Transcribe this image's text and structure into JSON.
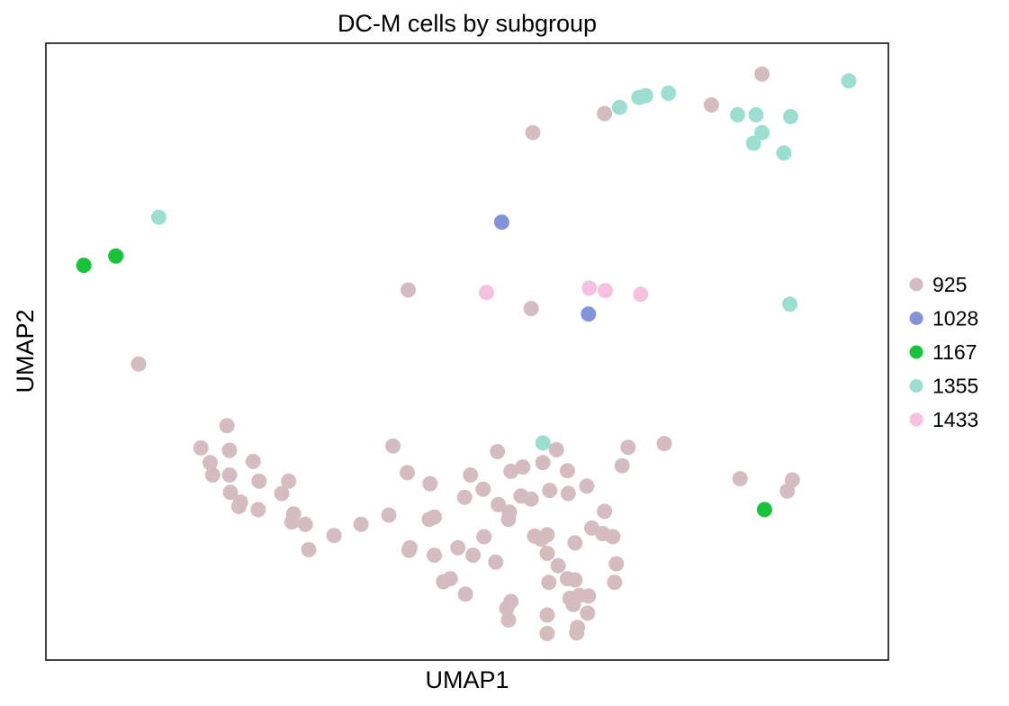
{
  "chart_data": {
    "type": "scatter",
    "title": "DC-M cells by subgroup",
    "xlabel": "UMAP1",
    "ylabel": "UMAP2",
    "xlim": [
      0,
      100
    ],
    "ylim": [
      0,
      100
    ],
    "grid": false,
    "legend_position": "right",
    "series": [
      {
        "name": "925",
        "color": "#d4bcc1",
        "points": [
          [
            85.0,
            95.0
          ],
          [
            79.0,
            90.0
          ],
          [
            66.3,
            88.6
          ],
          [
            57.8,
            85.5
          ],
          [
            43.0,
            60.0
          ],
          [
            57.6,
            57.0
          ],
          [
            11.0,
            48.0
          ],
          [
            21.5,
            38.0
          ],
          [
            18.4,
            34.4
          ],
          [
            21.8,
            34.0
          ],
          [
            19.5,
            32.0
          ],
          [
            19.8,
            30.0
          ],
          [
            24.6,
            32.2
          ],
          [
            21.8,
            30.0
          ],
          [
            25.3,
            29.0
          ],
          [
            21.9,
            27.2
          ],
          [
            23.1,
            25.6
          ],
          [
            22.9,
            24.9
          ],
          [
            25.2,
            24.4
          ],
          [
            28.8,
            29.0
          ],
          [
            28.0,
            27.0
          ],
          [
            29.4,
            23.7
          ],
          [
            29.2,
            22.4
          ],
          [
            30.8,
            22.0
          ],
          [
            34.2,
            20.2
          ],
          [
            37.4,
            22.0
          ],
          [
            40.7,
            23.5
          ],
          [
            41.2,
            34.7
          ],
          [
            42.9,
            30.4
          ],
          [
            45.6,
            28.6
          ],
          [
            45.5,
            22.8
          ],
          [
            46.1,
            23.2
          ],
          [
            49.7,
            26.4
          ],
          [
            51.9,
            27.7
          ],
          [
            50.4,
            30.0
          ],
          [
            53.6,
            33.8
          ],
          [
            55.2,
            30.6
          ],
          [
            56.6,
            31.3
          ],
          [
            59.0,
            32.0
          ],
          [
            60.6,
            34.1
          ],
          [
            61.9,
            30.7
          ],
          [
            62.0,
            27.0
          ],
          [
            57.6,
            26.1
          ],
          [
            56.4,
            26.6
          ],
          [
            55.0,
            24.0
          ],
          [
            54.9,
            22.8
          ],
          [
            53.7,
            25.2
          ],
          [
            59.8,
            27.5
          ],
          [
            64.2,
            28.2
          ],
          [
            68.4,
            31.5
          ],
          [
            69.1,
            34.5
          ],
          [
            73.4,
            35.1
          ],
          [
            66.3,
            24.1
          ],
          [
            64.8,
            21.4
          ],
          [
            66.1,
            20.5
          ],
          [
            67.3,
            20.0
          ],
          [
            62.8,
            19.0
          ],
          [
            58.8,
            19.6
          ],
          [
            58.0,
            20.1
          ],
          [
            59.5,
            20.3
          ],
          [
            59.5,
            17.3
          ],
          [
            52.0,
            20.0
          ],
          [
            48.9,
            18.2
          ],
          [
            50.7,
            17.0
          ],
          [
            43.2,
            18.2
          ],
          [
            43.1,
            17.8
          ],
          [
            46.1,
            17.0
          ],
          [
            53.4,
            15.9
          ],
          [
            60.8,
            15.3
          ],
          [
            61.9,
            13.2
          ],
          [
            62.8,
            13.0
          ],
          [
            59.7,
            12.6
          ],
          [
            67.7,
            15.6
          ],
          [
            67.5,
            12.6
          ],
          [
            48.0,
            13.2
          ],
          [
            47.2,
            12.7
          ],
          [
            49.8,
            10.7
          ],
          [
            55.2,
            9.5
          ],
          [
            54.7,
            8.4
          ],
          [
            62.6,
            9.0
          ],
          [
            63.3,
            10.5
          ],
          [
            62.2,
            10.0
          ],
          [
            64.4,
            10.4
          ],
          [
            64.3,
            7.6
          ],
          [
            59.5,
            7.3
          ],
          [
            54.9,
            6.5
          ],
          [
            63.1,
            5.3
          ],
          [
            63.0,
            4.4
          ],
          [
            59.5,
            4.3
          ],
          [
            31.2,
            17.9
          ],
          [
            82.4,
            29.4
          ],
          [
            88.6,
            29.2
          ],
          [
            88.0,
            27.4
          ]
        ]
      },
      {
        "name": "1028",
        "color": "#8393db",
        "points": [
          [
            54.1,
            71.0
          ],
          [
            64.4,
            56.1
          ]
        ]
      },
      {
        "name": "1167",
        "color": "#19c339",
        "points": [
          [
            4.5,
            64.0
          ],
          [
            8.3,
            65.5
          ],
          [
            85.3,
            24.4
          ]
        ]
      },
      {
        "name": "1355",
        "color": "#9cded2",
        "points": [
          [
            13.4,
            71.8
          ],
          [
            68.1,
            89.6
          ],
          [
            70.4,
            91.2
          ],
          [
            71.2,
            91.5
          ],
          [
            73.9,
            91.9
          ],
          [
            82.1,
            88.4
          ],
          [
            84.3,
            88.4
          ],
          [
            88.4,
            88.1
          ],
          [
            85.0,
            85.5
          ],
          [
            84.0,
            83.8
          ],
          [
            87.6,
            82.2
          ],
          [
            95.3,
            93.9
          ],
          [
            88.3,
            57.7
          ],
          [
            59.0,
            35.2
          ]
        ]
      },
      {
        "name": "1433",
        "color": "#f5c1de",
        "points": [
          [
            52.3,
            59.6
          ],
          [
            64.5,
            60.3
          ],
          [
            66.4,
            59.9
          ],
          [
            70.6,
            59.3
          ]
        ]
      }
    ]
  }
}
